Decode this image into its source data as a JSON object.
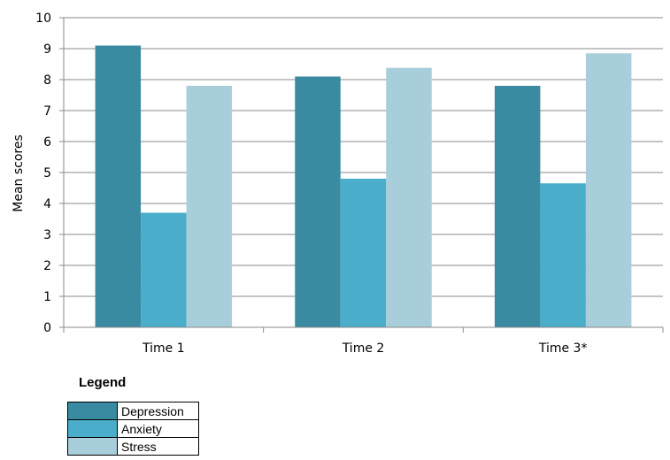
{
  "chart_data": {
    "type": "bar",
    "categories": [
      "Time 1",
      "Time 2",
      "Time 3*"
    ],
    "series": [
      {
        "name": "Depression",
        "values": [
          9.1,
          8.1,
          7.8
        ],
        "color": "#3a8ba1"
      },
      {
        "name": "Anxiety",
        "values": [
          3.7,
          4.8,
          4.65
        ],
        "color": "#4aadc9"
      },
      {
        "name": "Stress",
        "values": [
          7.8,
          8.38,
          8.85
        ],
        "color": "#a8cedb"
      }
    ],
    "yticks": [
      0,
      1,
      2,
      3,
      4,
      5,
      6,
      7,
      8,
      9,
      10
    ],
    "ylim": [
      0,
      10
    ],
    "ylabel": "Mean scores",
    "xlabel": "",
    "title": "",
    "grid": true,
    "legend": {
      "title": "Legend",
      "placement": "bottom-left"
    }
  }
}
